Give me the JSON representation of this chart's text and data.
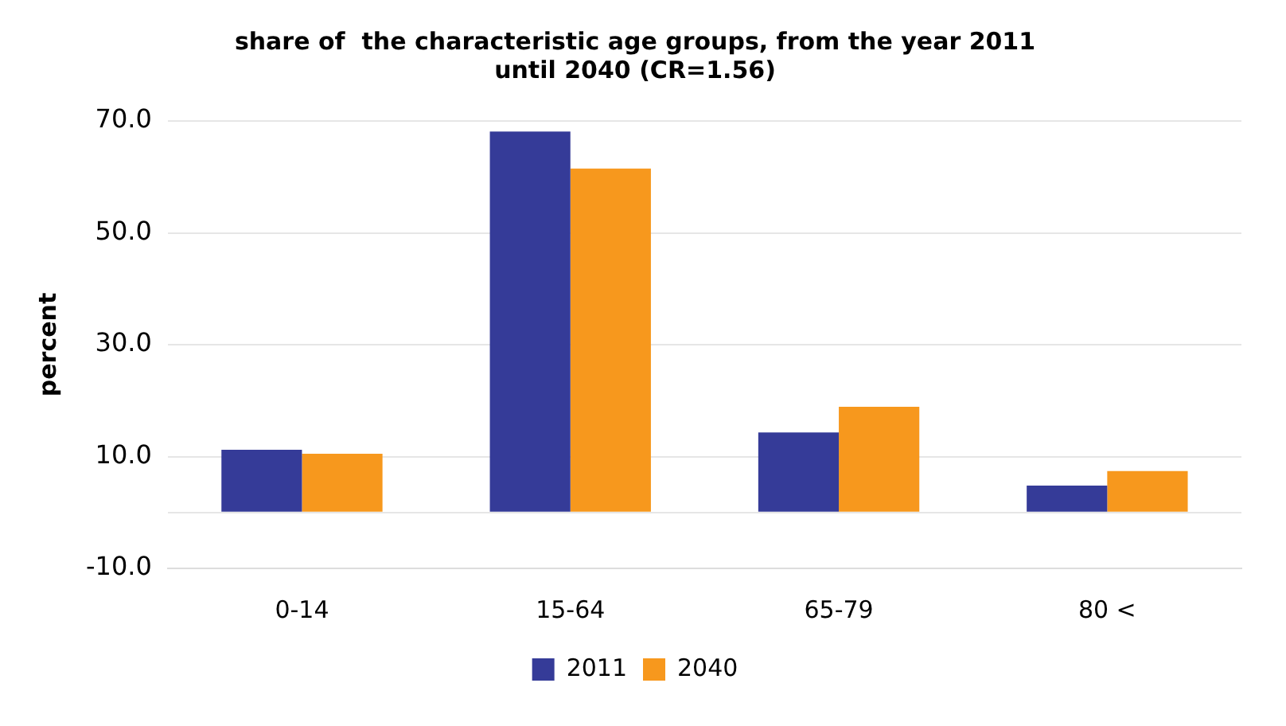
{
  "chart_data": {
    "type": "bar",
    "title": "share of  the characteristic age groups, from the year 2011 until 2040 (CR=1.56)",
    "ylabel": "percent",
    "categories": [
      "0-14",
      "15-64",
      "65-79",
      "80 <"
    ],
    "series": [
      {
        "name": "2011",
        "color": "#353b98",
        "values": [
          11.2,
          68.1,
          14.3,
          4.8
        ]
      },
      {
        "name": "2040",
        "color": "#f7981d",
        "values": [
          10.5,
          61.5,
          18.9,
          7.4
        ]
      }
    ],
    "ylim": [
      -10,
      70
    ],
    "yticks": [
      {
        "value": -10,
        "label": "-10.0"
      },
      {
        "value": 0,
        "label": null
      },
      {
        "value": 10,
        "label": "10.0"
      },
      {
        "value": 30,
        "label": "30.0"
      },
      {
        "value": 50,
        "label": "50.0"
      },
      {
        "value": 70,
        "label": "70.0"
      }
    ],
    "grid": "y",
    "legend": "bottom"
  }
}
